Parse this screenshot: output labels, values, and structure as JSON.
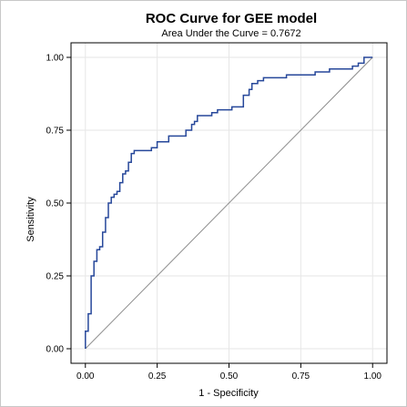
{
  "chart_data": {
    "type": "line",
    "title": "ROC Curve for GEE model",
    "subtitle": "Area Under the Curve = 0.7672",
    "xlabel": "1 - Specificity",
    "ylabel": "Sensitivity",
    "xlim": [
      -0.05,
      1.05
    ],
    "ylim": [
      -0.05,
      1.05
    ],
    "xticks": [
      "0.00",
      "0.25",
      "0.50",
      "0.75",
      "1.00"
    ],
    "yticks": [
      "0.00",
      "0.25",
      "0.50",
      "0.75",
      "1.00"
    ],
    "grid": true,
    "legend": "none",
    "colors": {
      "roc": "#26479a",
      "reference": "#8c8c8c",
      "grid": "#e6e6e6",
      "axis": "#000000"
    },
    "series": [
      {
        "x": [
          0.0,
          0.0,
          0.01,
          0.01,
          0.02,
          0.02,
          0.03,
          0.03,
          0.04,
          0.04,
          0.05,
          0.06,
          0.06,
          0.07,
          0.08,
          0.09,
          0.09,
          0.1,
          0.11,
          0.11,
          0.12,
          0.13,
          0.14,
          0.15,
          0.16,
          0.17,
          0.18,
          0.19,
          0.2,
          0.23,
          0.25,
          0.25,
          0.28,
          0.29,
          0.3,
          0.35,
          0.37,
          0.38,
          0.39,
          0.42,
          0.44,
          0.46,
          0.5,
          0.51,
          0.55,
          0.57,
          0.58,
          0.6,
          0.62,
          0.65,
          0.7,
          0.75,
          0.8,
          0.85,
          0.88,
          0.93,
          0.95,
          0.97,
          1.0
        ],
        "y": [
          0.0,
          0.06,
          0.07,
          0.12,
          0.2,
          0.25,
          0.27,
          0.3,
          0.32,
          0.34,
          0.35,
          0.37,
          0.4,
          0.45,
          0.5,
          0.5,
          0.52,
          0.53,
          0.54,
          0.54,
          0.57,
          0.6,
          0.61,
          0.64,
          0.67,
          0.68,
          0.68,
          0.68,
          0.68,
          0.69,
          0.69,
          0.71,
          0.71,
          0.73,
          0.73,
          0.75,
          0.77,
          0.78,
          0.8,
          0.8,
          0.81,
          0.82,
          0.82,
          0.83,
          0.87,
          0.89,
          0.91,
          0.92,
          0.93,
          0.93,
          0.94,
          0.94,
          0.95,
          0.96,
          0.96,
          0.97,
          0.98,
          1.0,
          1.0
        ]
      }
    ]
  }
}
